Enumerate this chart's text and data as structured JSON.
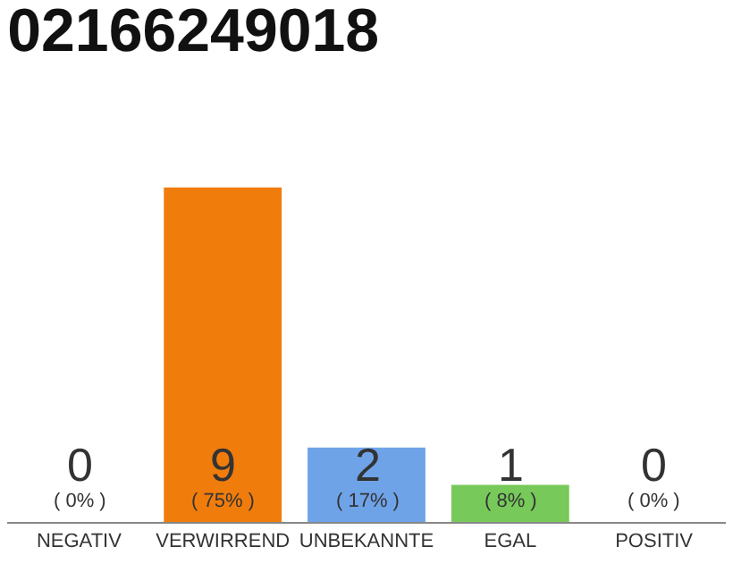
{
  "chart_data": {
    "type": "bar",
    "title": "02166249018",
    "categories": [
      "NEGATIV",
      "VERWIRREND",
      "UNBEKANNTE",
      "EGAL",
      "POSITIV"
    ],
    "values": [
      0,
      9,
      2,
      1,
      0
    ],
    "colors": [
      "#cccccc",
      "#f07c0c",
      "#6fa3e8",
      "#77c95a",
      "#cccccc"
    ],
    "value_labels": [
      "0\n( 0% )",
      "9\n( 75% )",
      "2\n( 17% )",
      "1\n( 8% )",
      "0\n( 0% )"
    ],
    "grid": false
  }
}
